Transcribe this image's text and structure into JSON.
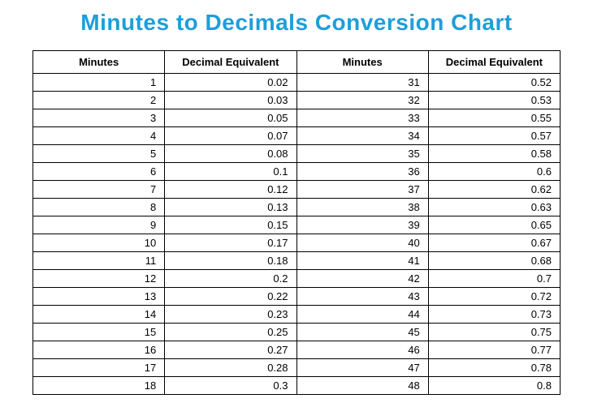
{
  "title": "Minutes to Decimals Conversion Chart",
  "table": {
    "headers": [
      "Minutes",
      "Decimal Equivalent",
      "Minutes",
      "Decimal Equivalent"
    ],
    "rows": [
      [
        "1",
        "0.02",
        "31",
        "0.52"
      ],
      [
        "2",
        "0.03",
        "32",
        "0.53"
      ],
      [
        "3",
        "0.05",
        "33",
        "0.55"
      ],
      [
        "4",
        "0.07",
        "34",
        "0.57"
      ],
      [
        "5",
        "0.08",
        "35",
        "0.58"
      ],
      [
        "6",
        "0.1",
        "36",
        "0.6"
      ],
      [
        "7",
        "0.12",
        "37",
        "0.62"
      ],
      [
        "8",
        "0.13",
        "38",
        "0.63"
      ],
      [
        "9",
        "0.15",
        "39",
        "0.65"
      ],
      [
        "10",
        "0.17",
        "40",
        "0.67"
      ],
      [
        "11",
        "0.18",
        "41",
        "0.68"
      ],
      [
        "12",
        "0.2",
        "42",
        "0.7"
      ],
      [
        "13",
        "0.22",
        "43",
        "0.72"
      ],
      [
        "14",
        "0.23",
        "44",
        "0.73"
      ],
      [
        "15",
        "0.25",
        "45",
        "0.75"
      ],
      [
        "16",
        "0.27",
        "46",
        "0.77"
      ],
      [
        "17",
        "0.28",
        "47",
        "0.78"
      ],
      [
        "18",
        "0.3",
        "48",
        "0.8"
      ]
    ]
  },
  "styling": {
    "title_color": "#1e9ed9",
    "title_fontsize": 28,
    "border_color": "#000000",
    "background_color": "#ffffff",
    "header_fontsize": 13,
    "cell_fontsize": 13,
    "cell_align": "right",
    "header_align": "center"
  }
}
